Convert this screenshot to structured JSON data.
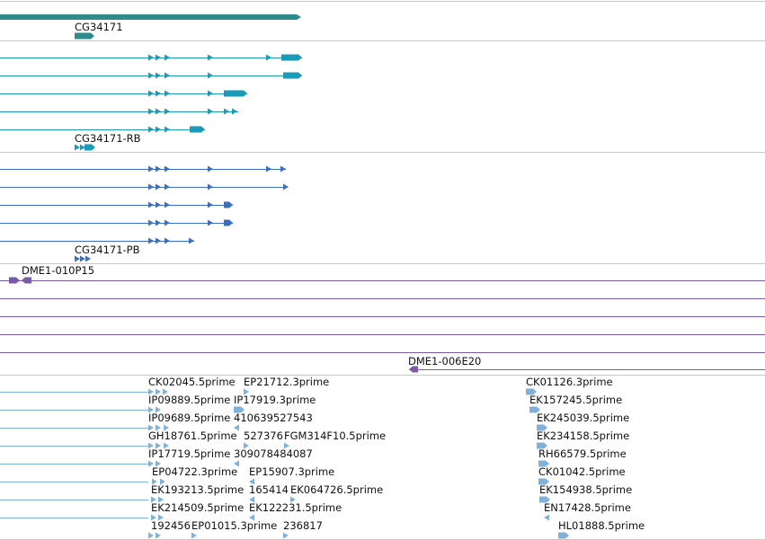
{
  "colors": {
    "gene": "#2e8b8b",
    "transcript_rb": "#1a9bb8",
    "transcript_pb": "#3a6fc4",
    "clone": "#7a5aa8",
    "est": "#7fb2da",
    "separator": "#c8c8c8"
  },
  "tracks": {
    "gene_label": "CG34171",
    "rb_label": "CG34171-RB",
    "pb_label": "CG34171-PB",
    "clone_label_1": "DME1-010P15",
    "clone_label_2": "DME1-006E20"
  },
  "est_labels": {
    "left": [
      "CK02045.5prime",
      "EP21712.3prime",
      "IP09889.5prime",
      "IP17919.3prime",
      "IP09689.5prime",
      "410639527543",
      "GH18761.5prime",
      "527376",
      "FGM314F10.5prime",
      "IP17719.5prime",
      "309078484087",
      "EP04722.3prime",
      "EP15907.3prime",
      "EK193213.5prime",
      "165414",
      "EK064726.5prime",
      "EK214509.5prime",
      "EK122231.5prime",
      "192456",
      "EP01015.3prime",
      "236817"
    ],
    "right": [
      "CK01126.3prime",
      "EK157245.5prime",
      "EK245039.5prime",
      "EK234158.5prime",
      "RH66579.5prime",
      "CK01042.5prime",
      "EK154938.5prime",
      "EN17428.5prime",
      "HL01888.5prime"
    ]
  }
}
